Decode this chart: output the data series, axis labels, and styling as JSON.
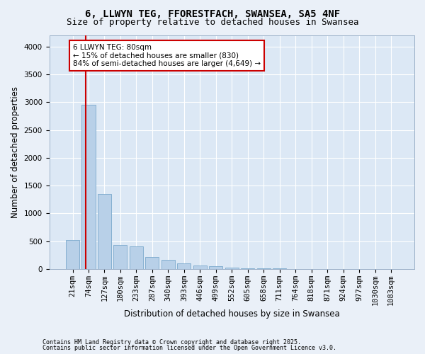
{
  "title1": "6, LLWYN TEG, FFORESTFACH, SWANSEA, SA5 4NF",
  "title2": "Size of property relative to detached houses in Swansea",
  "xlabel": "Distribution of detached houses by size in Swansea",
  "ylabel": "Number of detached properties",
  "bar_labels": [
    "21sqm",
    "74sqm",
    "127sqm",
    "180sqm",
    "233sqm",
    "287sqm",
    "340sqm",
    "393sqm",
    "446sqm",
    "499sqm",
    "552sqm",
    "605sqm",
    "658sqm",
    "711sqm",
    "764sqm",
    "818sqm",
    "871sqm",
    "924sqm",
    "977sqm",
    "1030sqm",
    "1083sqm"
  ],
  "bar_values": [
    520,
    2950,
    1350,
    430,
    410,
    220,
    160,
    100,
    70,
    55,
    30,
    15,
    10,
    8,
    5,
    4,
    3,
    2,
    1,
    1,
    0
  ],
  "bar_color": "#b8d0e8",
  "bar_edge_color": "#7aa8cc",
  "bar_width": 0.85,
  "property_line_x": 0.82,
  "annotation_text_line1": "6 LLWYN TEG: 80sqm",
  "annotation_text_line2": "← 15% of detached houses are smaller (830)",
  "annotation_text_line3": "84% of semi-detached houses are larger (4,649) →",
  "annotation_box_color": "#ffffff",
  "annotation_box_edge_color": "#cc0000",
  "red_line_color": "#cc0000",
  "ylim": [
    0,
    4200
  ],
  "yticks": [
    0,
    500,
    1000,
    1500,
    2000,
    2500,
    3000,
    3500,
    4000
  ],
  "footer_line1": "Contains HM Land Registry data © Crown copyright and database right 2025.",
  "footer_line2": "Contains public sector information licensed under the Open Government Licence v3.0.",
  "fig_bg_color": "#eaf0f8",
  "plot_bg_color": "#dce8f5",
  "title1_fontsize": 10,
  "title2_fontsize": 9,
  "tick_fontsize": 7.5,
  "label_fontsize": 8.5,
  "annotation_fontsize": 7.5,
  "footer_fontsize": 6,
  "grid_color": "#c8d8e8"
}
